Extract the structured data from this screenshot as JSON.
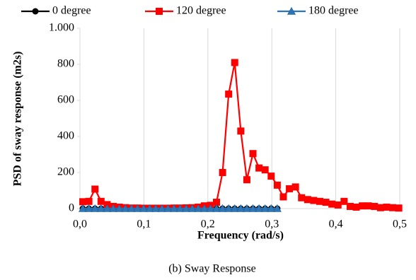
{
  "chart_data": {
    "type": "line",
    "caption": "(b) Sway Response",
    "x_label": "Frequency (rad/s)",
    "y_label": "PSD of sway response (m2s)",
    "xlim": [
      0,
      0.5
    ],
    "xticks": [
      {
        "value": 0,
        "label": "0,0"
      },
      {
        "value": 0.1,
        "label": "0,1"
      },
      {
        "value": 0.2,
        "label": "0,2"
      },
      {
        "value": 0.3,
        "label": "0,3"
      },
      {
        "value": 0.4,
        "label": "0,4"
      },
      {
        "value": 0.5,
        "label": "0,5"
      }
    ],
    "ylim": [
      0,
      1000
    ],
    "yticks": [
      0,
      200,
      400,
      600,
      800,
      {
        "value": 1000,
        "label": "1.000"
      }
    ],
    "grid": "x",
    "legend": "top",
    "series": [
      {
        "name": "0 degree",
        "color": "#000000",
        "marker": "circle",
        "x": [
          0.0045,
          0.014,
          0.0235,
          0.033,
          0.0425,
          0.052,
          0.0615,
          0.071,
          0.0805,
          0.09,
          0.0995,
          0.109,
          0.1185,
          0.128,
          0.1375,
          0.147,
          0.1565,
          0.166,
          0.1755,
          0.185,
          0.1945,
          0.204,
          0.2135,
          0.223,
          0.2325,
          0.242,
          0.2515,
          0.261,
          0.2705,
          0.28,
          0.2895,
          0.299,
          0.3085
        ],
        "values": [
          0,
          0,
          0,
          0,
          0,
          0,
          0,
          0,
          0,
          0,
          0,
          0,
          0,
          0,
          0,
          0,
          0,
          0,
          0,
          0,
          0,
          0,
          0,
          0,
          0,
          0,
          0,
          0,
          0,
          0,
          0,
          0,
          0
        ]
      },
      {
        "name": "120 degree",
        "color": "#ff0000",
        "marker": "square",
        "x": [
          0.0045,
          0.014,
          0.0235,
          0.033,
          0.0425,
          0.052,
          0.0615,
          0.071,
          0.0805,
          0.09,
          0.0995,
          0.109,
          0.1185,
          0.128,
          0.1375,
          0.147,
          0.1565,
          0.166,
          0.1755,
          0.185,
          0.1945,
          0.204,
          0.2135,
          0.223,
          0.2325,
          0.242,
          0.2515,
          0.261,
          0.2705,
          0.28,
          0.2895,
          0.299,
          0.3085,
          0.318,
          0.3275,
          0.337,
          0.3465,
          0.356,
          0.3655,
          0.375,
          0.3845,
          0.394,
          0.4035,
          0.413,
          0.4225,
          0.432,
          0.4415,
          0.451,
          0.4605,
          0.47,
          0.4795,
          0.489,
          0.4985
        ],
        "values": [
          38,
          40,
          108,
          40,
          22,
          12,
          8,
          5,
          3,
          3,
          2,
          2,
          2,
          2,
          2,
          3,
          3,
          4,
          5,
          8,
          15,
          18,
          35,
          200,
          635,
          810,
          430,
          160,
          305,
          225,
          215,
          180,
          130,
          65,
          110,
          120,
          60,
          50,
          45,
          40,
          35,
          25,
          20,
          40,
          12,
          8,
          15,
          15,
          12,
          5,
          8,
          5,
          3
        ]
      },
      {
        "name": "180 degree",
        "color": "#2e75b6",
        "marker": "triangle",
        "x": [
          0.0045,
          0.014,
          0.0235,
          0.033,
          0.0425,
          0.052,
          0.0615,
          0.071,
          0.0805,
          0.09,
          0.0995,
          0.109,
          0.1185,
          0.128,
          0.1375,
          0.147,
          0.1565,
          0.166,
          0.1755,
          0.185,
          0.1945,
          0.204,
          0.2135,
          0.223,
          0.2325,
          0.242,
          0.2515,
          0.261,
          0.2705,
          0.28,
          0.2895,
          0.299,
          0.3085
        ],
        "values": [
          0,
          0,
          0,
          0,
          0,
          0,
          0,
          0,
          0,
          0,
          0,
          0,
          0,
          0,
          0,
          0,
          0,
          0,
          0,
          0,
          0,
          0,
          0,
          0,
          0,
          0,
          0,
          0,
          0,
          0,
          0,
          0,
          0
        ]
      }
    ]
  }
}
